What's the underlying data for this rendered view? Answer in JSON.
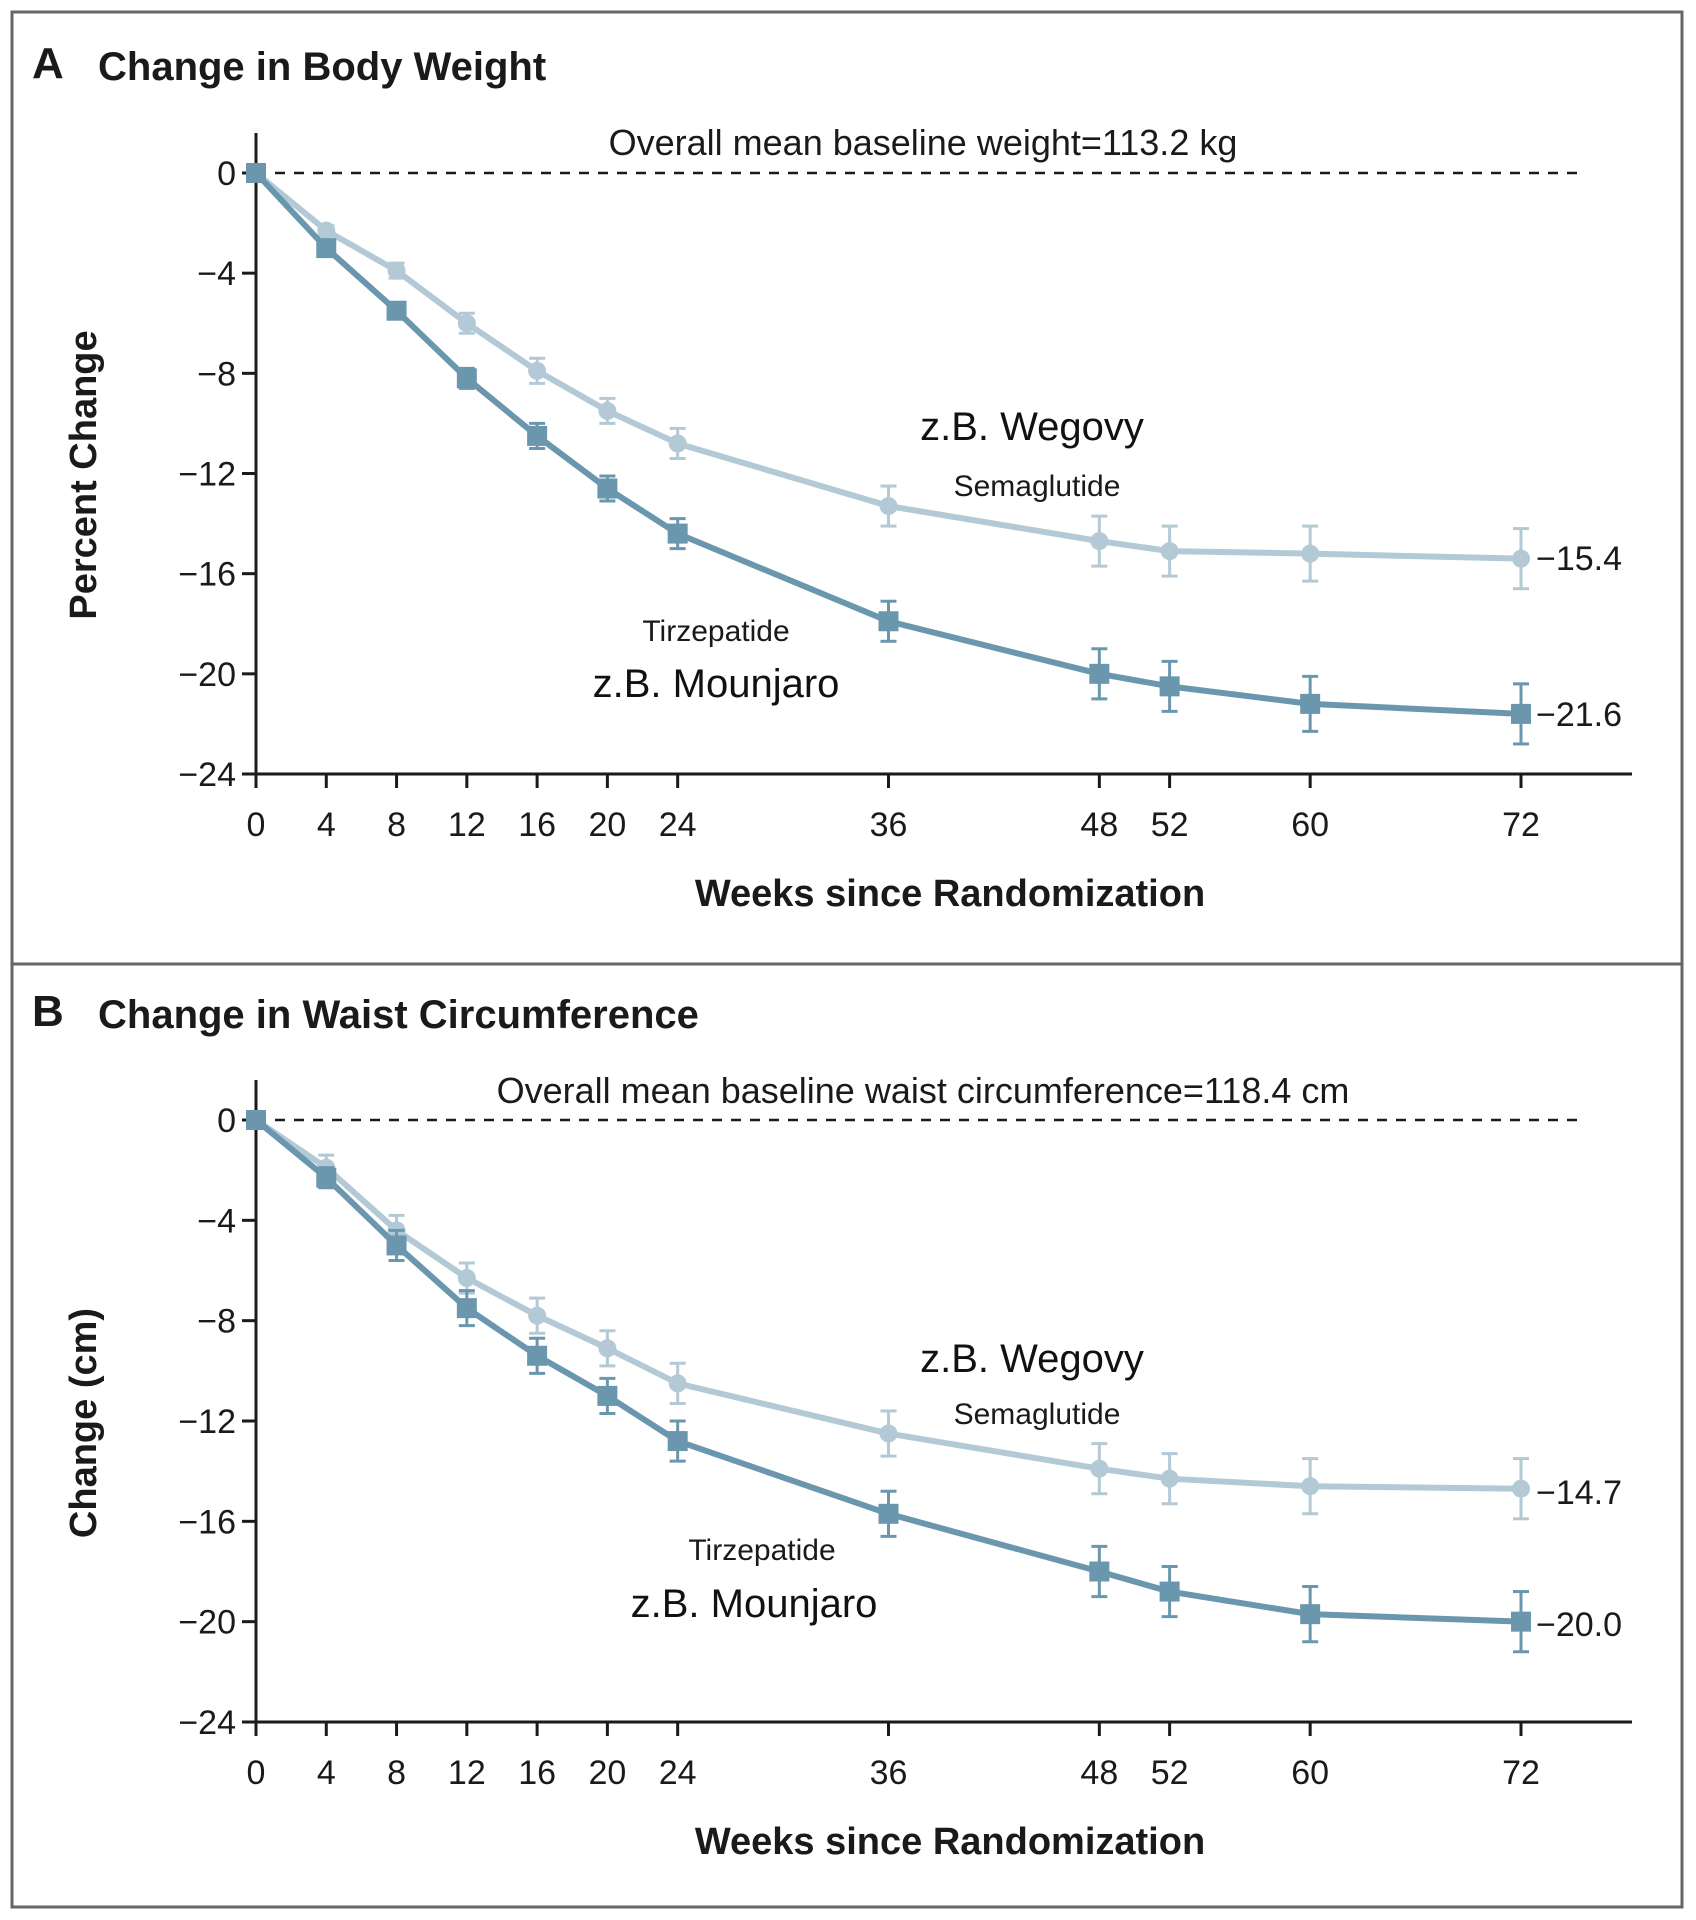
{
  "colors": {
    "semaglutide": "#b3c9d6",
    "tirzepatide": "#6a97ae",
    "axis": "#1a1a1a"
  },
  "chart_data": [
    {
      "type": "line",
      "panel": "A",
      "title": "Change in Body Weight",
      "baseline_note": "Overall mean baseline weight=113.2 kg",
      "xlabel": "Weeks since Randomization",
      "ylabel": "Percent Change",
      "x": [
        0,
        4,
        8,
        12,
        16,
        20,
        24,
        36,
        48,
        52,
        60,
        72
      ],
      "xticks": [
        0,
        4,
        8,
        12,
        16,
        20,
        24,
        36,
        48,
        52,
        60,
        72
      ],
      "yticks": [
        0,
        -4,
        -8,
        -12,
        -16,
        -20,
        -24
      ],
      "ylim": [
        -24,
        0
      ],
      "xlim": [
        0,
        78
      ],
      "series": [
        {
          "name": "Semaglutide",
          "brand_label": "z.B. Wegovy",
          "marker": "circle",
          "values": [
            0,
            -2.3,
            -3.9,
            -6.0,
            -7.9,
            -9.5,
            -10.8,
            -13.3,
            -14.7,
            -15.1,
            -15.2,
            -15.4
          ],
          "error": [
            0,
            0.2,
            0.3,
            0.4,
            0.5,
            0.5,
            0.6,
            0.8,
            1.0,
            1.0,
            1.1,
            1.2
          ],
          "end_label": "−15.4"
        },
        {
          "name": "Tirzepatide",
          "brand_label": "z.B. Mounjaro",
          "marker": "square",
          "values": [
            0,
            -3.0,
            -5.5,
            -8.2,
            -10.5,
            -12.6,
            -14.4,
            -17.9,
            -20.0,
            -20.5,
            -21.2,
            -21.6
          ],
          "error": [
            0,
            0.2,
            0.3,
            0.4,
            0.5,
            0.5,
            0.6,
            0.8,
            1.0,
            1.0,
            1.1,
            1.2
          ],
          "end_label": "−21.6"
        }
      ]
    },
    {
      "type": "line",
      "panel": "B",
      "title": "Change in Waist Circumference",
      "baseline_note": "Overall mean baseline waist circumference=118.4 cm",
      "xlabel": "Weeks since Randomization",
      "ylabel": "Change (cm)",
      "x": [
        0,
        4,
        8,
        12,
        16,
        20,
        24,
        36,
        48,
        52,
        60,
        72
      ],
      "xticks": [
        0,
        4,
        8,
        12,
        16,
        20,
        24,
        36,
        48,
        52,
        60,
        72
      ],
      "yticks": [
        0,
        -4,
        -8,
        -12,
        -16,
        -20,
        -24
      ],
      "ylim": [
        -24,
        0
      ],
      "xlim": [
        0,
        78
      ],
      "series": [
        {
          "name": "Semaglutide",
          "brand_label": "z.B. Wegovy",
          "marker": "circle",
          "values": [
            0,
            -1.9,
            -4.4,
            -6.3,
            -7.8,
            -9.1,
            -10.5,
            -12.5,
            -13.9,
            -14.3,
            -14.6,
            -14.7
          ],
          "error": [
            0,
            0.5,
            0.6,
            0.6,
            0.7,
            0.7,
            0.8,
            0.9,
            1.0,
            1.0,
            1.1,
            1.2
          ],
          "end_label": "−14.7"
        },
        {
          "name": "Tirzepatide",
          "brand_label": "z.B. Mounjaro",
          "marker": "square",
          "values": [
            0,
            -2.3,
            -5.0,
            -7.5,
            -9.4,
            -11.0,
            -12.8,
            -15.7,
            -18.0,
            -18.8,
            -19.7,
            -20.0
          ],
          "error": [
            0,
            0.4,
            0.6,
            0.7,
            0.7,
            0.7,
            0.8,
            0.9,
            1.0,
            1.0,
            1.1,
            1.2
          ],
          "end_label": "−20.0"
        }
      ]
    }
  ]
}
